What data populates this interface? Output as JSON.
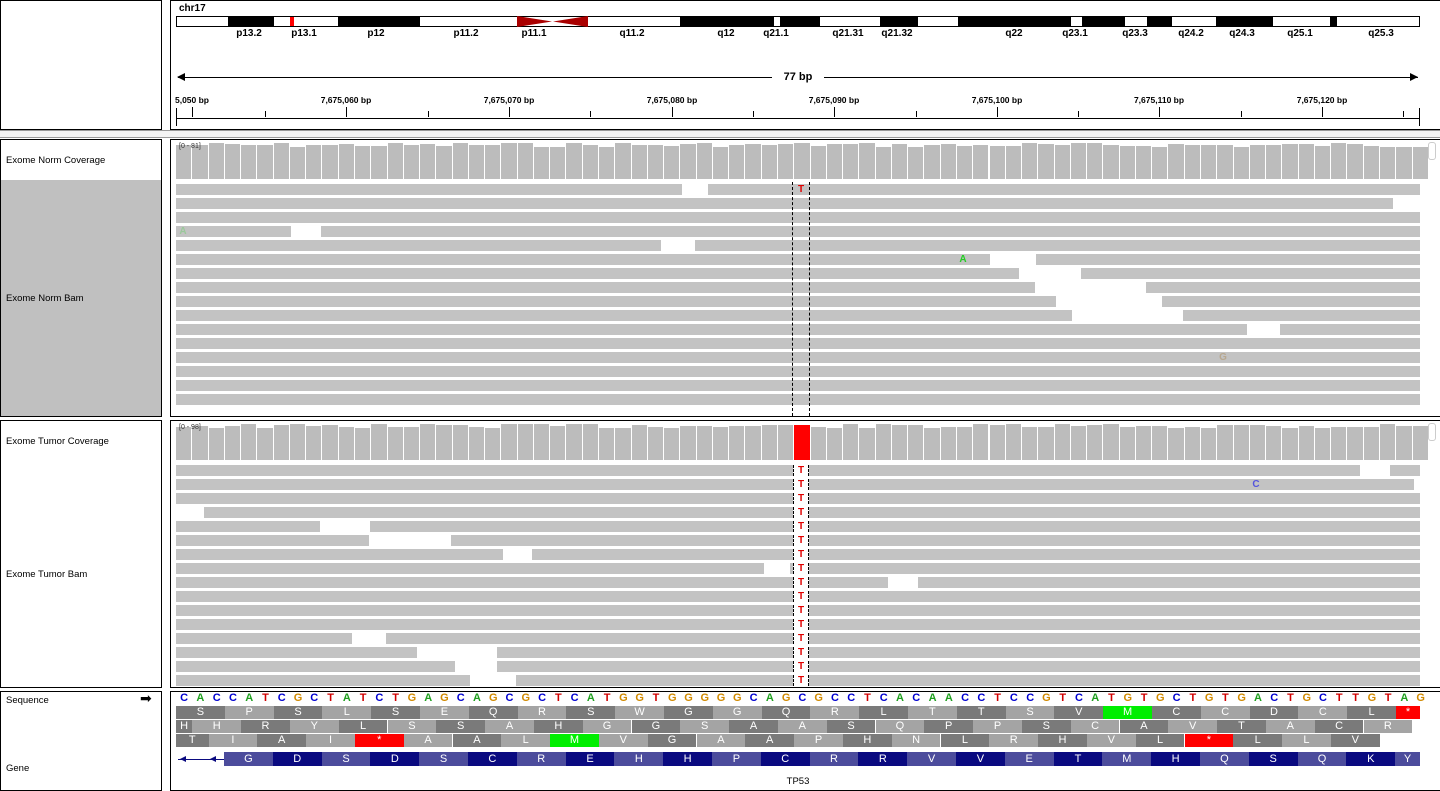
{
  "chromosome": "chr17",
  "cytobands": [
    "p13.2",
    "p13.1",
    "p12",
    "p11.2",
    "p11.1",
    "q11.2",
    "q12",
    "q21.1",
    "q21.31",
    "q21.32",
    "q22",
    "q23.1",
    "q23.3",
    "q24.2",
    "q24.3",
    "q25.1",
    "q25.3"
  ],
  "ruler": {
    "span": "77 bp",
    "ticks": [
      "5,050 bp",
      "7,675,060 bp",
      "7,675,070 bp",
      "7,675,080 bp",
      "7,675,090 bp",
      "7,675,100 bp",
      "7,675,110 bp",
      "7,675,120 bp"
    ]
  },
  "tracks": {
    "norm_coverage": {
      "label": "Exome Norm Coverage",
      "range": "[0 - 81]"
    },
    "norm_bam": {
      "label": "Exome Norm Bam"
    },
    "tumor_coverage": {
      "label": "Exome Tumor Coverage",
      "range": "[0 - 98]"
    },
    "tumor_bam": {
      "label": "Exome Tumor Bam"
    },
    "sequence": {
      "label": "Sequence",
      "arrow": "➡"
    },
    "gene": {
      "label": "Gene",
      "name": "TP53"
    }
  },
  "mismatches": {
    "norm": [
      {
        "base": "T",
        "color": "#e00000"
      },
      {
        "base": "A",
        "color": "#9ac89a"
      },
      {
        "base": "A",
        "color": "#22cc22"
      },
      {
        "base": "G",
        "color": "#b8a890"
      }
    ],
    "tumor": [
      {
        "base": "T",
        "color": "#e00000"
      },
      {
        "base": "C",
        "color": "#5555dd"
      }
    ]
  },
  "sequence_bases": "CACCATCGCTATCTGAGCAGCGCTCATGGTGGGGGCAGCGCCTCACAACCTCCGTCATGTGCTGTGACTGCTTGTAG",
  "base_colors": {
    "A": "#1f9f1f",
    "C": "#0000d0",
    "G": "#d18a00",
    "T": "#d00000"
  },
  "translation": {
    "frame1": [
      "S",
      "P",
      "S",
      "L",
      "S",
      "E",
      "Q",
      "R",
      "S",
      "W",
      "G",
      "G",
      "Q",
      "R",
      "L",
      "T",
      "T",
      "S",
      "V",
      "M",
      "C",
      "C",
      "D",
      "C",
      "L",
      "*"
    ],
    "frame2": [
      "H",
      "H",
      "R",
      "Y",
      "L",
      "S",
      "S",
      "A",
      "H",
      "G",
      "G",
      "S",
      "A",
      "A",
      "S",
      "Q",
      "P",
      "P",
      "S",
      "C",
      "A",
      "V",
      "T",
      "A",
      "C",
      "R"
    ],
    "frame3": [
      "T",
      "I",
      "A",
      "I",
      "*",
      "A",
      "A",
      "L",
      "M",
      "V",
      "G",
      "A",
      "A",
      "P",
      "H",
      "N",
      "L",
      "R",
      "H",
      "V",
      "L",
      "*",
      "L",
      "L",
      "V"
    ]
  },
  "gene_aa": [
    "G",
    "D",
    "S",
    "D",
    "S",
    "C",
    "R",
    "E",
    "H",
    "H",
    "P",
    "C",
    "R",
    "R",
    "V",
    "V",
    "E",
    "T",
    "M",
    "H",
    "Q",
    "S",
    "Q",
    "K",
    "Y"
  ],
  "colors": {
    "coverage": "#bcbcbc",
    "read": "#c3c3c3",
    "highlight": "#ff0000",
    "start_codon": "#00ee00",
    "stop_codon": "#ff0000",
    "gene_dark": "#0a0a80",
    "gene_light": "#4c4c9c"
  }
}
